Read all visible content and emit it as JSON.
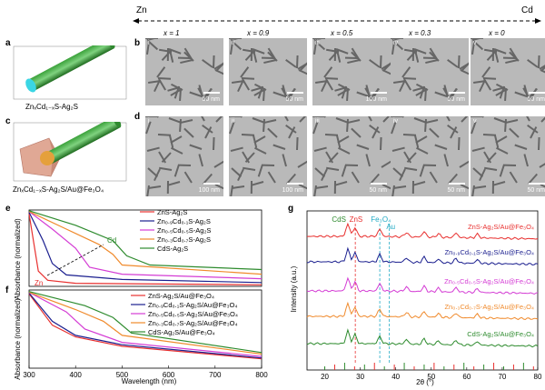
{
  "header": {
    "left": "Zn",
    "right": "Cd"
  },
  "panels": {
    "a": "a",
    "b": "b",
    "c": "c",
    "d": "d",
    "e": "e",
    "f": "f",
    "g": "g"
  },
  "schematic_a": "Zn",
  "schematic_a_sub": "x",
  "schematic_a_mid": "Cd",
  "schematic_a_sub2": "1−x",
  "schematic_a_end": "S-Ag",
  "schematic_a_sub3": "2",
  "schematic_a_tail": "S",
  "schematic_c_text": "ZnₓCd₁₋ₓS-Ag₂S/Au@Fe₃O₄",
  "schematic_a_text": "ZnₓCd₁₋ₓS-Ag₂S",
  "x_labels": [
    "x = 1",
    "x = 0.9",
    "x = 0.5",
    "x = 0.3",
    "x = 0"
  ],
  "row_b": [
    {
      "roman": "i",
      "scale": "50 nm"
    },
    {
      "roman": "ii",
      "scale": "50 nm"
    },
    {
      "roman": "iii",
      "scale": "100 nm"
    },
    {
      "roman": "iv",
      "scale": "50 nm"
    },
    {
      "roman": "v",
      "scale": "50 nm"
    }
  ],
  "row_d": [
    {
      "roman": "i",
      "scale": "100 nm"
    },
    {
      "roman": "ii",
      "scale": "100 nm"
    },
    {
      "roman": "iii",
      "scale": "50 nm"
    },
    {
      "roman": "iv",
      "scale": "50 nm"
    },
    {
      "roman": "v",
      "scale": "50 nm"
    }
  ],
  "chart_data": [
    {
      "type": "line",
      "panel": "e",
      "ylabel": "Absorbance (normalized)",
      "xlim": [
        300,
        800
      ],
      "annotations": [
        "Cd",
        "Zn"
      ],
      "series": [
        {
          "name": "ZnS-Ag₂S",
          "color": "#e8302f",
          "values": [
            [
              300,
              0.95
            ],
            [
              320,
              0.2
            ],
            [
              340,
              0.08
            ],
            [
              400,
              0.04
            ],
            [
              800,
              0.02
            ]
          ]
        },
        {
          "name": "Zn₀.₉Cd₀.₁S-Ag₂S",
          "color": "#1b1f8f",
          "values": [
            [
              300,
              0.97
            ],
            [
              330,
              0.6
            ],
            [
              350,
              0.3
            ],
            [
              380,
              0.15
            ],
            [
              500,
              0.09
            ],
            [
              800,
              0.05
            ]
          ]
        },
        {
          "name": "Zn₀.₅Cd₀.₅S-Ag₂S",
          "color": "#d43cd4",
          "values": [
            [
              300,
              0.98
            ],
            [
              350,
              0.75
            ],
            [
              400,
              0.5
            ],
            [
              430,
              0.25
            ],
            [
              500,
              0.16
            ],
            [
              800,
              0.1
            ]
          ]
        },
        {
          "name": "Zn₀.₃Cd₀.₇S-Ag₂S",
          "color": "#f08a2c",
          "values": [
            [
              300,
              0.98
            ],
            [
              380,
              0.75
            ],
            [
              450,
              0.55
            ],
            [
              480,
              0.42
            ],
            [
              500,
              0.28
            ],
            [
              800,
              0.16
            ]
          ]
        },
        {
          "name": "CdS-Ag₂S",
          "color": "#2e8b2e",
          "values": [
            [
              300,
              0.99
            ],
            [
              400,
              0.8
            ],
            [
              480,
              0.6
            ],
            [
              510,
              0.4
            ],
            [
              560,
              0.28
            ],
            [
              800,
              0.22
            ]
          ]
        }
      ]
    },
    {
      "type": "line",
      "panel": "f",
      "xlabel": "Wavelength (nm)",
      "ylabel": "Absorbance (normalized)",
      "xlim": [
        300,
        800
      ],
      "xticks": [
        300,
        400,
        500,
        600,
        700,
        800
      ],
      "series": [
        {
          "name": "ZnS-Ag₂S/Au@Fe₃O₄",
          "color": "#e8302f",
          "values": [
            [
              300,
              0.95
            ],
            [
              350,
              0.55
            ],
            [
              400,
              0.4
            ],
            [
              500,
              0.28
            ],
            [
              800,
              0.12
            ]
          ]
        },
        {
          "name": "Zn₀.₉Cd₀.₁S-Ag₂S/Au@Fe₃O₄",
          "color": "#1b1f8f",
          "values": [
            [
              300,
              0.96
            ],
            [
              350,
              0.6
            ],
            [
              400,
              0.42
            ],
            [
              500,
              0.3
            ],
            [
              800,
              0.13
            ]
          ]
        },
        {
          "name": "Zn₀.₅Cd₀.₅S-Ag₂S/Au@Fe₃O₄",
          "color": "#d43cd4",
          "values": [
            [
              300,
              0.97
            ],
            [
              380,
              0.72
            ],
            [
              420,
              0.5
            ],
            [
              500,
              0.33
            ],
            [
              800,
              0.15
            ]
          ]
        },
        {
          "name": "Zn₀.₃Cd₀.₇S-Ag₂S/Au@Fe₃O₄",
          "color": "#f08a2c",
          "values": [
            [
              300,
              0.97
            ],
            [
              400,
              0.75
            ],
            [
              460,
              0.6
            ],
            [
              500,
              0.42
            ],
            [
              800,
              0.18
            ]
          ]
        },
        {
          "name": "CdS-Ag₂S/Au@Fe₃O₄",
          "color": "#2e8b2e",
          "values": [
            [
              300,
              0.98
            ],
            [
              420,
              0.8
            ],
            [
              480,
              0.65
            ],
            [
              520,
              0.45
            ],
            [
              800,
              0.2
            ]
          ]
        }
      ]
    },
    {
      "type": "line",
      "panel": "g",
      "xlabel": "2θ (°)",
      "ylabel": "Intensity (a.u.)",
      "xlim": [
        15,
        80
      ],
      "xticks": [
        20,
        30,
        40,
        50,
        60,
        70,
        80
      ],
      "annotations": [
        "CdS",
        "ZnS",
        "Fe₃O₄",
        "Au"
      ],
      "series": [
        {
          "name": "ZnS-Ag₂S/Au@Fe₃O₄",
          "color": "#e8302f"
        },
        {
          "name": "Zn₀.₉Cd₀.₁S-Ag₂S/Au@Fe₃O₄",
          "color": "#1b1f8f"
        },
        {
          "name": "Zn₀.₅Cd₀.₅S-Ag₂S/Au@Fe₃O₄",
          "color": "#d43cd4"
        },
        {
          "name": "Zn₀.₃Cd₀.₇S-Ag₂S/Au@Fe₃O₄",
          "color": "#f08a2c"
        },
        {
          "name": "CdS-Ag₂S/Au@Fe₃O₄",
          "color": "#2e8b2e"
        }
      ],
      "reference_lines": [
        {
          "label": "ZnS",
          "x": 28.6,
          "color": "#e8302f"
        },
        {
          "label": "Fe₃O₄",
          "x": 35.5,
          "color": "#1fa9c4"
        },
        {
          "label": "Au",
          "x": 38.2,
          "color": "#1fa9c4"
        }
      ]
    }
  ]
}
